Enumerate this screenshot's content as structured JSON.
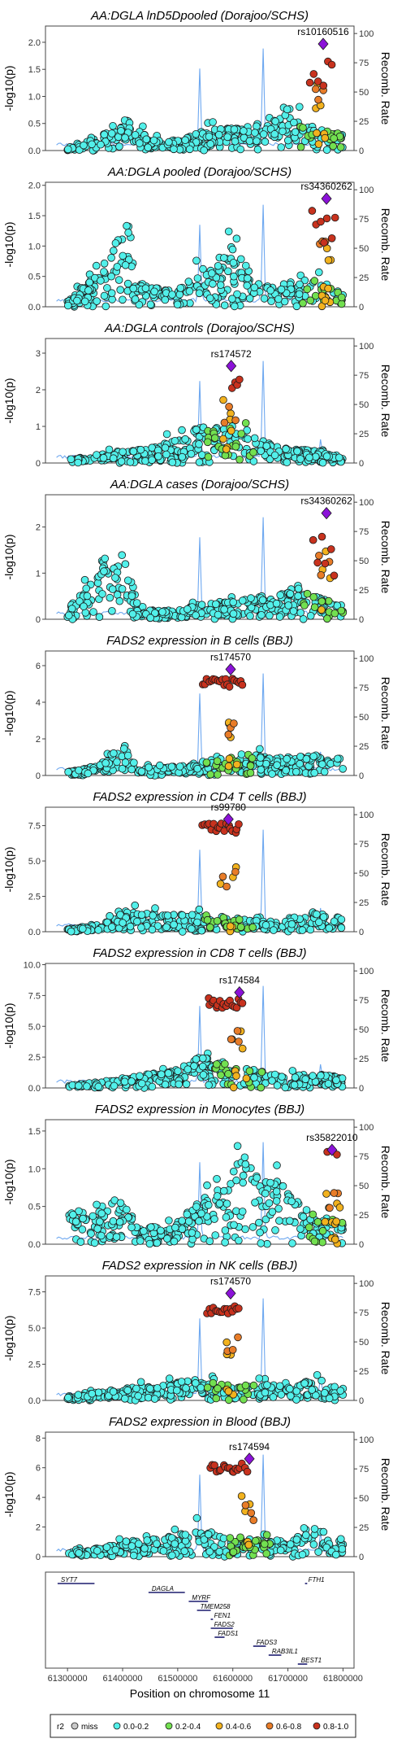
{
  "legend": {
    "title": "r2",
    "items": [
      {
        "label": "miss",
        "color": "#c8c8c8"
      },
      {
        "label": "0.0-0.2",
        "color": "#52f0ea"
      },
      {
        "label": "0.2-0.4",
        "color": "#72e050"
      },
      {
        "label": "0.4-0.6",
        "color": "#f2b21e"
      },
      {
        "label": "0.6-0.8",
        "color": "#e87c28"
      },
      {
        "label": "0.8-1.0",
        "color": "#c8321e"
      }
    ]
  },
  "colors": {
    "lead": "#8b12d8",
    "recomb": "#6ea8f0"
  },
  "genes_panel": {
    "xlabel": "Position on chromosome 11",
    "xticks": [
      61300000,
      61400000,
      61500000,
      61600000,
      61700000,
      61800000
    ],
    "genes": [
      {
        "name": "SYT7",
        "start": 61282000,
        "end": 61349000,
        "row": 0,
        "label_at": "start"
      },
      {
        "name": "FTH1",
        "start": 61731000,
        "end": 61735000,
        "row": 0,
        "label_at": "start"
      },
      {
        "name": "DAGLA",
        "start": 61447000,
        "end": 61513000,
        "row": 1,
        "label_at": "start"
      },
      {
        "name": "MYRF",
        "start": 61520000,
        "end": 61555000,
        "row": 2,
        "label_at": "start"
      },
      {
        "name": "TMEM258",
        "start": 61535000,
        "end": 61560000,
        "row": 3,
        "label_at": "start"
      },
      {
        "name": "FEN1",
        "start": 61560000,
        "end": 61564000,
        "row": 4,
        "label_at": "start"
      },
      {
        "name": "FADS2",
        "start": 61560000,
        "end": 61600000,
        "row": 5,
        "label_at": "start"
      },
      {
        "name": "FADS1",
        "start": 61567000,
        "end": 61585000,
        "row": 6,
        "label_at": "start"
      },
      {
        "name": "FADS3",
        "start": 61637000,
        "end": 61660000,
        "row": 7,
        "label_at": "start"
      },
      {
        "name": "RAB3IL1",
        "start": 61665000,
        "end": 61688000,
        "row": 8,
        "label_at": "start"
      },
      {
        "name": "BEST1",
        "start": 61718000,
        "end": 61735000,
        "row": 9,
        "label_at": "start"
      }
    ]
  },
  "chart_data": [
    {
      "type": "scatter",
      "title": "AA:DGLA lnD5Dpooled (Dorajoo/SCHS)",
      "ylabel": "-log10(p)",
      "y2label": "Recomb. Rate",
      "xlim": [
        61260000,
        61820000
      ],
      "ylim": [
        0,
        2.3
      ],
      "yticks": [
        0,
        0.5,
        1.0,
        1.5,
        2.0
      ],
      "ytick_labels": [
        "0.0",
        "0.5",
        "1.0",
        "1.5",
        "2.0"
      ],
      "y2ticks": [
        0,
        25,
        50,
        75,
        100
      ],
      "lead_snp": {
        "label": "rs10160516",
        "x": 61764000,
        "y": 1.97
      },
      "seed": 11,
      "profile": [
        [
          61300000,
          0.05
        ],
        [
          61360000,
          0.25
        ],
        [
          61400000,
          0.65
        ],
        [
          61450000,
          0.2
        ],
        [
          61500000,
          0.2
        ],
        [
          61540000,
          0.35
        ],
        [
          61600000,
          0.45
        ],
        [
          61650000,
          0.35
        ],
        [
          61700000,
          0.8
        ],
        [
          61750000,
          0.4
        ],
        [
          61800000,
          0.3
        ]
      ],
      "hotspots": [
        {
          "x": 61540000,
          "y": 0.7
        },
        {
          "x": 61655000,
          "y": 0.9
        },
        {
          "x": 61760000,
          "y": 0.25
        }
      ],
      "peak": {
        "from": 61740000,
        "to": 61780000,
        "ymin": 0.9,
        "ymax": 1.7,
        "n": 6
      }
    },
    {
      "type": "scatter",
      "title": "AA:DGLA pooled (Dorajoo/SCHS)",
      "ylabel": "-log10(p)",
      "y2label": "Recomb. Rate",
      "xlim": [
        61260000,
        61820000
      ],
      "ylim": [
        0,
        2.05
      ],
      "yticks": [
        0,
        0.5,
        1.0,
        1.5,
        2.0
      ],
      "ytick_labels": [
        "0.0",
        "0.5",
        "1.0",
        "1.5",
        "2.0"
      ],
      "y2ticks": [
        0,
        25,
        50,
        75,
        100
      ],
      "lead_snp": {
        "label": "rs34360262",
        "x": 61770000,
        "y": 1.78
      },
      "seed": 22,
      "profile": [
        [
          61300000,
          0.1
        ],
        [
          61360000,
          0.6
        ],
        [
          61400000,
          1.3
        ],
        [
          61430000,
          0.4
        ],
        [
          61500000,
          0.25
        ],
        [
          61540000,
          0.6
        ],
        [
          61600000,
          0.95
        ],
        [
          61650000,
          0.4
        ],
        [
          61700000,
          0.3
        ],
        [
          61750000,
          0.5
        ],
        [
          61800000,
          0.2
        ]
      ],
      "hotspots": [
        {
          "x": 61540000,
          "y": 0.7
        },
        {
          "x": 61655000,
          "y": 0.9
        },
        {
          "x": 61760000,
          "y": 0.25
        }
      ],
      "peak": {
        "from": 61745000,
        "to": 61785000,
        "ymin": 0.8,
        "ymax": 1.7,
        "n": 7
      }
    },
    {
      "type": "scatter",
      "title": "AA:DGLA controls (Dorajoo/SCHS)",
      "ylabel": "-log10(p)",
      "y2label": "Recomb. Rate",
      "xlim": [
        61260000,
        61820000
      ],
      "ylim": [
        0,
        3.4
      ],
      "yticks": [
        0,
        1,
        2,
        3
      ],
      "ytick_labels": [
        "0",
        "1",
        "2",
        "3"
      ],
      "y2ticks": [
        0,
        25,
        50,
        75,
        100
      ],
      "lead_snp": {
        "label": "rs174572",
        "x": 61597000,
        "y": 2.65
      },
      "seed": 33,
      "profile": [
        [
          61300000,
          0.1
        ],
        [
          61380000,
          0.3
        ],
        [
          61450000,
          0.4
        ],
        [
          61520000,
          0.8
        ],
        [
          61540000,
          1.1
        ],
        [
          61600000,
          1.0
        ],
        [
          61650000,
          0.6
        ],
        [
          61700000,
          0.4
        ],
        [
          61750000,
          0.35
        ],
        [
          61800000,
          0.2
        ]
      ],
      "hotspots": [
        {
          "x": 61540000,
          "y": 0.7
        },
        {
          "x": 61655000,
          "y": 0.9
        },
        {
          "x": 61760000,
          "y": 0.25
        }
      ],
      "peak": {
        "from": 61600000,
        "to": 61612000,
        "ymin": 2.0,
        "ymax": 2.4,
        "n": 4
      }
    },
    {
      "type": "scatter",
      "title": "AA:DGLA cases (Dorajoo/SCHS)",
      "ylabel": "-log10(p)",
      "y2label": "Recomb. Rate",
      "xlim": [
        61260000,
        61820000
      ],
      "ylim": [
        0,
        2.7
      ],
      "yticks": [
        0,
        1,
        2
      ],
      "ytick_labels": [
        "0",
        "1",
        "2"
      ],
      "y2ticks": [
        0,
        25,
        50,
        75,
        100
      ],
      "lead_snp": {
        "label": "rs34360262",
        "x": 61770000,
        "y": 2.3
      },
      "seed": 44,
      "profile": [
        [
          61300000,
          0.2
        ],
        [
          61360000,
          1.2
        ],
        [
          61400000,
          1.6
        ],
        [
          61430000,
          0.2
        ],
        [
          61500000,
          0.2
        ],
        [
          61550000,
          0.35
        ],
        [
          61600000,
          0.4
        ],
        [
          61650000,
          0.5
        ],
        [
          61700000,
          0.6
        ],
        [
          61750000,
          0.5
        ],
        [
          61800000,
          0.3
        ]
      ],
      "hotspots": [
        {
          "x": 61540000,
          "y": 0.7
        },
        {
          "x": 61655000,
          "y": 0.9
        },
        {
          "x": 61760000,
          "y": 0.25
        }
      ],
      "peak": {
        "from": 61745000,
        "to": 61785000,
        "ymin": 0.9,
        "ymax": 2.0,
        "n": 6
      }
    },
    {
      "type": "scatter",
      "title": "FADS2 expression in B cells (BBJ)",
      "ylabel": "-log10(p)",
      "y2label": "Recomb. Rate",
      "xlim": [
        61260000,
        61820000
      ],
      "ylim": [
        0,
        6.8
      ],
      "yticks": [
        0,
        2,
        4,
        6
      ],
      "ytick_labels": [
        "0",
        "2",
        "4",
        "6"
      ],
      "y2ticks": [
        0,
        25,
        50,
        75,
        100
      ],
      "lead_snp": {
        "label": "rs174570",
        "x": 61596000,
        "y": 5.8
      },
      "seed": 55,
      "profile": [
        [
          61300000,
          0.2
        ],
        [
          61360000,
          0.6
        ],
        [
          61400000,
          1.8
        ],
        [
          61430000,
          0.4
        ],
        [
          61500000,
          0.5
        ],
        [
          61540000,
          0.6
        ],
        [
          61600000,
          1.2
        ],
        [
          61650000,
          1.1
        ],
        [
          61700000,
          1.0
        ],
        [
          61750000,
          1.2
        ],
        [
          61800000,
          0.9
        ]
      ],
      "hotspots": [
        {
          "x": 61540000,
          "y": 0.7
        },
        {
          "x": 61655000,
          "y": 0.9
        },
        {
          "x": 61760000,
          "y": 0.25
        }
      ],
      "peak": {
        "from": 61545000,
        "to": 61618000,
        "ymin": 4.6,
        "ymax": 5.3,
        "n": 20
      }
    },
    {
      "type": "scatter",
      "title": "FADS2 expression in CD4 T cells (BBJ)",
      "ylabel": "-log10(p)",
      "y2label": "Recomb. Rate",
      "xlim": [
        61260000,
        61820000
      ],
      "ylim": [
        0,
        8.8
      ],
      "yticks": [
        0,
        2.5,
        5.0,
        7.5
      ],
      "ytick_labels": [
        "0.0",
        "2.5",
        "5.0",
        "7.5"
      ],
      "y2ticks": [
        0,
        25,
        50,
        75,
        100
      ],
      "lead_snp": {
        "label": "rs99780",
        "x": 61592000,
        "y": 7.95
      },
      "seed": 66,
      "profile": [
        [
          61300000,
          0.2
        ],
        [
          61360000,
          0.5
        ],
        [
          61400000,
          1.5
        ],
        [
          61500000,
          1.2
        ],
        [
          61540000,
          1.2
        ],
        [
          61600000,
          1.0
        ],
        [
          61650000,
          0.8
        ],
        [
          61700000,
          1.0
        ],
        [
          61750000,
          1.5
        ],
        [
          61800000,
          1.0
        ]
      ],
      "hotspots": [
        {
          "x": 61540000,
          "y": 0.7
        },
        {
          "x": 61655000,
          "y": 0.9
        },
        {
          "x": 61760000,
          "y": 0.25
        }
      ],
      "peak": {
        "from": 61545000,
        "to": 61612000,
        "ymin": 7.0,
        "ymax": 7.7,
        "n": 18
      }
    },
    {
      "type": "scatter",
      "title": "FADS2 expression in CD8 T cells (BBJ)",
      "ylabel": "-log10(p)",
      "y2label": "Recomb. Rate",
      "xlim": [
        61260000,
        61820000
      ],
      "ylim": [
        0,
        10.1
      ],
      "yticks": [
        0,
        2.5,
        5.0,
        7.5,
        10.0
      ],
      "ytick_labels": [
        "0.0",
        "2.5",
        "5.0",
        "7.5",
        "10.0"
      ],
      "y2ticks": [
        0,
        25,
        50,
        75,
        100
      ],
      "lead_snp": {
        "label": "rs174584",
        "x": 61612000,
        "y": 7.75
      },
      "seed": 77,
      "profile": [
        [
          61300000,
          0.2
        ],
        [
          61360000,
          0.5
        ],
        [
          61400000,
          0.8
        ],
        [
          61500000,
          1.5
        ],
        [
          61540000,
          2.6
        ],
        [
          61600000,
          1.8
        ],
        [
          61650000,
          1.4
        ],
        [
          61700000,
          1.0
        ],
        [
          61750000,
          1.2
        ],
        [
          61800000,
          0.8
        ]
      ],
      "hotspots": [
        {
          "x": 61540000,
          "y": 0.7
        },
        {
          "x": 61655000,
          "y": 0.9
        },
        {
          "x": 61760000,
          "y": 0.25
        }
      ],
      "peak": {
        "from": 61555000,
        "to": 61618000,
        "ymin": 6.5,
        "ymax": 7.3,
        "n": 18
      }
    },
    {
      "type": "scatter",
      "title": "FADS2 expression in Monocytes (BBJ)",
      "ylabel": "-log10(p)",
      "y2label": "Recomb. Rate",
      "xlim": [
        61260000,
        61820000
      ],
      "ylim": [
        0,
        1.65
      ],
      "yticks": [
        0,
        0.5,
        1.0,
        1.5
      ],
      "ytick_labels": [
        "0.0",
        "0.5",
        "1.0",
        "1.5"
      ],
      "y2ticks": [
        0,
        25,
        50,
        75,
        100
      ],
      "lead_snp": {
        "label": "rs35822010",
        "x": 61780000,
        "y": 1.25
      },
      "seed": 88,
      "profile": [
        [
          61300000,
          0.4
        ],
        [
          61360000,
          0.55
        ],
        [
          61400000,
          0.6
        ],
        [
          61430000,
          0.2
        ],
        [
          61500000,
          0.3
        ],
        [
          61540000,
          0.6
        ],
        [
          61600000,
          1.0
        ],
        [
          61620000,
          1.3
        ],
        [
          61650000,
          0.9
        ],
        [
          61700000,
          0.8
        ],
        [
          61750000,
          0.4
        ],
        [
          61800000,
          0.3
        ]
      ],
      "hotspots": [
        {
          "x": 61540000,
          "y": 0.7
        },
        {
          "x": 61655000,
          "y": 0.9
        },
        {
          "x": 61760000,
          "y": 0.25
        }
      ],
      "peak": {
        "from": 61772000,
        "to": 61790000,
        "ymin": 1.15,
        "ymax": 1.25,
        "n": 2
      }
    },
    {
      "type": "scatter",
      "title": "FADS2 expression in NK cells (BBJ)",
      "ylabel": "-log10(p)",
      "y2label": "Recomb. Rate",
      "xlim": [
        61260000,
        61820000
      ],
      "ylim": [
        0,
        8.6
      ],
      "yticks": [
        0,
        2.5,
        5.0,
        7.5
      ],
      "ytick_labels": [
        "0.0",
        "2.5",
        "5.0",
        "7.5"
      ],
      "y2ticks": [
        0,
        25,
        50,
        75,
        100
      ],
      "lead_snp": {
        "label": "rs174570",
        "x": 61596000,
        "y": 7.4
      },
      "seed": 99,
      "profile": [
        [
          61300000,
          0.2
        ],
        [
          61360000,
          0.6
        ],
        [
          61400000,
          0.8
        ],
        [
          61500000,
          1.3
        ],
        [
          61540000,
          1.5
        ],
        [
          61600000,
          1.0
        ],
        [
          61650000,
          1.1
        ],
        [
          61700000,
          1.0
        ],
        [
          61750000,
          1.5
        ],
        [
          61800000,
          1.0
        ]
      ],
      "hotspots": [
        {
          "x": 61540000,
          "y": 0.7
        },
        {
          "x": 61655000,
          "y": 0.9
        },
        {
          "x": 61760000,
          "y": 0.25
        }
      ],
      "peak": {
        "from": 61553000,
        "to": 61612000,
        "ymin": 6.0,
        "ymax": 6.6,
        "n": 16
      }
    },
    {
      "type": "scatter",
      "title": "FADS2 expression in Blood (BBJ)",
      "ylabel": "-log10(p)",
      "y2label": "Recomb. Rate",
      "xlim": [
        61260000,
        61820000
      ],
      "ylim": [
        0,
        8.4
      ],
      "yticks": [
        0,
        2,
        4,
        6,
        8
      ],
      "ytick_labels": [
        "0",
        "2",
        "4",
        "6",
        "8"
      ],
      "y2ticks": [
        0,
        25,
        50,
        75,
        100
      ],
      "lead_snp": {
        "label": "rs174594",
        "x": 61630000,
        "y": 6.6
      },
      "seed": 111,
      "profile": [
        [
          61300000,
          0.3
        ],
        [
          61360000,
          0.6
        ],
        [
          61400000,
          1.0
        ],
        [
          61500000,
          1.5
        ],
        [
          61540000,
          2.0
        ],
        [
          61600000,
          1.3
        ],
        [
          61650000,
          1.2
        ],
        [
          61700000,
          1.0
        ],
        [
          61750000,
          2.0
        ],
        [
          61800000,
          1.0
        ]
      ],
      "hotspots": [
        {
          "x": 61540000,
          "y": 0.7
        },
        {
          "x": 61655000,
          "y": 0.9
        },
        {
          "x": 61760000,
          "y": 0.25
        }
      ],
      "peak": {
        "from": 61560000,
        "to": 61625000,
        "ymin": 5.7,
        "ymax": 6.3,
        "n": 18
      }
    }
  ]
}
